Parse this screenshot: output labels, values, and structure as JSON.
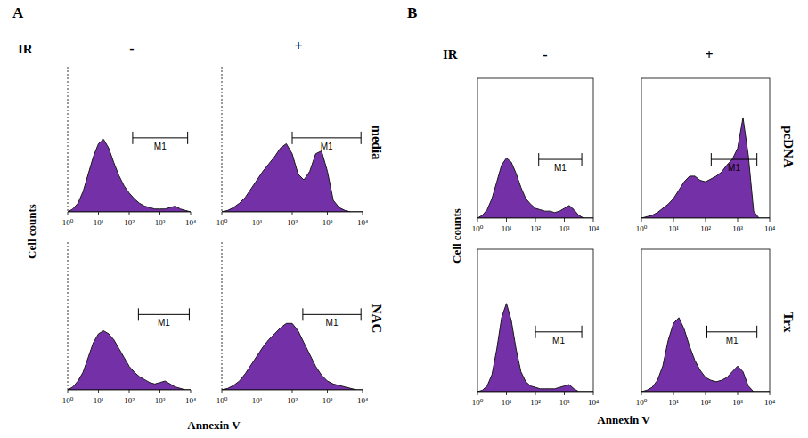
{
  "panels": [
    {
      "letter": "A",
      "condition": "IR",
      "columns": [
        "-",
        "+"
      ],
      "rows": [
        "media",
        "NAC"
      ],
      "y_label": "Cell counts",
      "x_label": "Annexin V"
    },
    {
      "letter": "B",
      "condition": "IR",
      "columns": [
        "-",
        "+"
      ],
      "rows": [
        "pcDNA",
        "Trx"
      ],
      "y_label": "Cell counts",
      "x_label": "Annexin V"
    }
  ],
  "chart_data": [
    {
      "type": "area",
      "log": "x",
      "tick_labels": "x",
      "xlim": [
        1,
        10000
      ],
      "ylim": [
        0,
        100
      ],
      "xticks": [
        {
          "value": 1,
          "label": "10⁰"
        },
        {
          "value": 10,
          "label": "10¹"
        },
        {
          "value": 100,
          "label": "10²"
        },
        {
          "value": 1000,
          "label": "10³"
        },
        {
          "value": 10000,
          "label": "10⁴"
        }
      ],
      "x": [
        1,
        1.47,
        2.15,
        3.16,
        4.64,
        6.81,
        10,
        14.7,
        21.5,
        31.6,
        46.4,
        68.1,
        100,
        147,
        215,
        316,
        464,
        681,
        1000,
        1470,
        2150,
        3160,
        4640,
        6810,
        10000
      ],
      "series": [
        {
          "color": "#7430a6",
          "values": [
            0,
            2,
            6,
            14,
            26,
            38,
            47,
            50,
            44,
            34,
            25,
            18,
            13,
            9,
            6,
            4,
            3,
            2,
            2,
            2,
            3,
            4,
            2,
            1,
            0
          ]
        }
      ],
      "gate": {
        "label": "M1",
        "range": [
          130,
          8000
        ]
      }
    },
    {
      "type": "area",
      "log": "x",
      "tick_labels": "x",
      "xlim": [
        1,
        10000
      ],
      "ylim": [
        0,
        100
      ],
      "xticks": [
        {
          "value": 1,
          "label": "10⁰"
        },
        {
          "value": 10,
          "label": "10¹"
        },
        {
          "value": 100,
          "label": "10²"
        },
        {
          "value": 1000,
          "label": "10³"
        },
        {
          "value": 10000,
          "label": "10⁴"
        }
      ],
      "x": [
        1,
        1.47,
        2.15,
        3.16,
        4.64,
        6.81,
        10,
        14.7,
        21.5,
        31.6,
        46.4,
        68.1,
        100,
        147,
        215,
        316,
        464,
        681,
        1000,
        1470,
        2150,
        3160,
        4640,
        6810,
        10000
      ],
      "series": [
        {
          "color": "#7430a6",
          "values": [
            0,
            1,
            3,
            6,
            10,
            16,
            22,
            28,
            33,
            38,
            44,
            47,
            40,
            26,
            22,
            28,
            40,
            42,
            28,
            8,
            3,
            1,
            0,
            0,
            0
          ]
        }
      ],
      "gate": {
        "label": "M1",
        "range": [
          100,
          9000
        ]
      }
    },
    {
      "type": "area",
      "log": "x",
      "tick_labels": "x",
      "xlim": [
        1,
        10000
      ],
      "ylim": [
        0,
        100
      ],
      "xticks": [
        {
          "value": 1,
          "label": "10⁰"
        },
        {
          "value": 10,
          "label": "10¹"
        },
        {
          "value": 100,
          "label": "10²"
        },
        {
          "value": 1000,
          "label": "10³"
        },
        {
          "value": 10000,
          "label": "10⁴"
        }
      ],
      "x": [
        1,
        1.47,
        2.15,
        3.16,
        4.64,
        6.81,
        10,
        14.7,
        21.5,
        31.6,
        46.4,
        68.1,
        100,
        147,
        215,
        316,
        464,
        681,
        1000,
        1470,
        2150,
        3160,
        4640,
        6810,
        10000
      ],
      "series": [
        {
          "color": "#7430a6",
          "values": [
            0,
            2,
            6,
            12,
            22,
            32,
            38,
            40,
            38,
            34,
            28,
            22,
            16,
            12,
            9,
            7,
            5,
            4,
            5,
            6,
            4,
            2,
            1,
            0,
            0
          ]
        }
      ],
      "gate": {
        "label": "M1",
        "range": [
          200,
          9000
        ]
      }
    },
    {
      "type": "area",
      "log": "x",
      "tick_labels": "x",
      "xlim": [
        1,
        10000
      ],
      "ylim": [
        0,
        100
      ],
      "xticks": [
        {
          "value": 1,
          "label": "10⁰"
        },
        {
          "value": 10,
          "label": "10¹"
        },
        {
          "value": 100,
          "label": "10²"
        },
        {
          "value": 1000,
          "label": "10³"
        },
        {
          "value": 10000,
          "label": "10⁴"
        }
      ],
      "x": [
        1,
        1.47,
        2.15,
        3.16,
        4.64,
        6.81,
        10,
        14.7,
        21.5,
        31.6,
        46.4,
        68.1,
        100,
        147,
        215,
        316,
        464,
        681,
        1000,
        1470,
        2150,
        3160,
        4640,
        6810,
        10000
      ],
      "series": [
        {
          "color": "#7430a6",
          "values": [
            0,
            1,
            3,
            6,
            11,
            17,
            23,
            29,
            34,
            38,
            42,
            45,
            45,
            40,
            32,
            24,
            16,
            10,
            6,
            4,
            3,
            2,
            1,
            0,
            0
          ]
        }
      ],
      "gate": {
        "label": "M1",
        "range": [
          200,
          9000
        ]
      }
    },
    {
      "type": "area",
      "log": "x",
      "tick_labels": "x",
      "xlim": [
        1,
        10000
      ],
      "ylim": [
        0,
        100
      ],
      "xticks": [
        {
          "value": 1,
          "label": "10⁰"
        },
        {
          "value": 10,
          "label": "10¹"
        },
        {
          "value": 100,
          "label": "10²"
        },
        {
          "value": 1000,
          "label": "10³"
        },
        {
          "value": 10000,
          "label": "10⁴"
        }
      ],
      "x": [
        1,
        1.47,
        2.15,
        3.16,
        4.64,
        6.81,
        10,
        14.7,
        21.5,
        31.6,
        46.4,
        68.1,
        100,
        147,
        215,
        316,
        464,
        681,
        1000,
        1470,
        2150,
        3160,
        4640,
        6810,
        10000
      ],
      "series": [
        {
          "color": "#7430a6",
          "values": [
            0,
            2,
            6,
            14,
            26,
            38,
            43,
            40,
            32,
            22,
            14,
            10,
            7,
            6,
            5,
            5,
            4,
            5,
            7,
            9,
            6,
            2,
            0,
            0,
            0
          ]
        }
      ],
      "gate": {
        "label": "M1",
        "range": [
          130,
          4000
        ]
      }
    },
    {
      "type": "area",
      "log": "x",
      "tick_labels": "x",
      "xlim": [
        1,
        10000
      ],
      "ylim": [
        0,
        100
      ],
      "xticks": [
        {
          "value": 1,
          "label": "10⁰"
        },
        {
          "value": 10,
          "label": "10¹"
        },
        {
          "value": 100,
          "label": "10²"
        },
        {
          "value": 1000,
          "label": "10³"
        },
        {
          "value": 10000,
          "label": "10⁴"
        }
      ],
      "x": [
        1,
        1.47,
        2.15,
        3.16,
        4.64,
        6.81,
        10,
        14.7,
        21.5,
        31.6,
        46.4,
        68.1,
        100,
        147,
        215,
        316,
        464,
        681,
        1000,
        1470,
        2150,
        3160,
        4640,
        6810,
        10000
      ],
      "series": [
        {
          "color": "#7430a6",
          "values": [
            0,
            1,
            2,
            4,
            7,
            10,
            14,
            20,
            26,
            30,
            30,
            27,
            26,
            28,
            30,
            33,
            38,
            42,
            50,
            72,
            45,
            5,
            0,
            0,
            0
          ]
        }
      ],
      "gate": {
        "label": "M1",
        "range": [
          150,
          4000
        ]
      }
    },
    {
      "type": "area",
      "log": "x",
      "tick_labels": "x",
      "xlim": [
        1,
        10000
      ],
      "ylim": [
        0,
        100
      ],
      "xticks": [
        {
          "value": 1,
          "label": "10⁰"
        },
        {
          "value": 10,
          "label": "10¹"
        },
        {
          "value": 100,
          "label": "10²"
        },
        {
          "value": 1000,
          "label": "10³"
        },
        {
          "value": 10000,
          "label": "10⁴"
        }
      ],
      "x": [
        1,
        1.47,
        2.15,
        3.16,
        4.64,
        6.81,
        10,
        14.7,
        21.5,
        31.6,
        46.4,
        68.1,
        100,
        147,
        215,
        316,
        464,
        681,
        1000,
        1470,
        2150,
        3160,
        4640,
        6810,
        10000
      ],
      "series": [
        {
          "color": "#7430a6",
          "values": [
            0,
            1,
            4,
            12,
            30,
            52,
            62,
            50,
            30,
            14,
            7,
            4,
            3,
            2,
            2,
            2,
            2,
            3,
            4,
            5,
            2,
            0,
            0,
            0,
            0
          ]
        }
      ],
      "gate": {
        "label": "M1",
        "range": [
          100,
          4000
        ]
      }
    },
    {
      "type": "area",
      "log": "x",
      "tick_labels": "x",
      "xlim": [
        1,
        10000
      ],
      "ylim": [
        0,
        100
      ],
      "xticks": [
        {
          "value": 1,
          "label": "10⁰"
        },
        {
          "value": 10,
          "label": "10¹"
        },
        {
          "value": 100,
          "label": "10²"
        },
        {
          "value": 1000,
          "label": "10³"
        },
        {
          "value": 10000,
          "label": "10⁴"
        }
      ],
      "x": [
        1,
        1.47,
        2.15,
        3.16,
        4.64,
        6.81,
        10,
        14.7,
        21.5,
        31.6,
        46.4,
        68.1,
        100,
        147,
        215,
        316,
        464,
        681,
        1000,
        1470,
        2150,
        3160,
        4640,
        6810,
        10000
      ],
      "series": [
        {
          "color": "#7430a6",
          "values": [
            0,
            1,
            3,
            8,
            18,
            36,
            48,
            52,
            44,
            32,
            22,
            15,
            10,
            8,
            7,
            8,
            10,
            14,
            18,
            14,
            4,
            0,
            0,
            0,
            0
          ]
        }
      ],
      "gate": {
        "label": "M1",
        "range": [
          110,
          4000
        ]
      }
    }
  ]
}
